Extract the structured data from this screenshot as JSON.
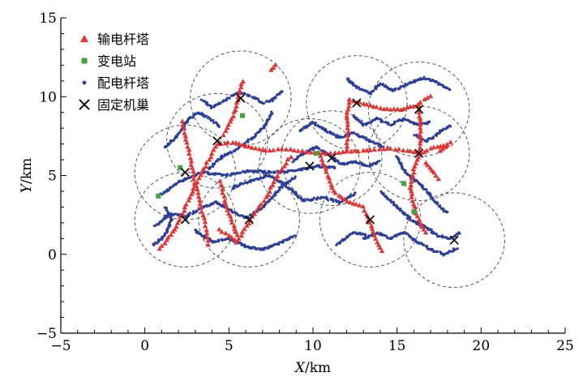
{
  "chart_data": {
    "type": "scatter",
    "xlabel_var": "X",
    "xlabel_unit": "/km",
    "ylabel_var": "Y",
    "ylabel_unit": "/km",
    "xlim": [
      -5,
      25
    ],
    "ylim": [
      -5,
      15
    ],
    "xticks": [
      -5,
      0,
      5,
      10,
      15,
      20,
      25
    ],
    "yticks": [
      -5,
      0,
      5,
      10,
      15
    ],
    "x_minor_step": 1,
    "y_minor_step": 1,
    "grid": false,
    "legend_position": "top-left",
    "legend": [
      {
        "label": "输电杆塔",
        "marker": "triangle",
        "color": "#e8322f"
      },
      {
        "label": "变电站",
        "marker": "square",
        "color": "#3ea63a"
      },
      {
        "label": "配电杆塔",
        "marker": "dot",
        "color": "#2b3f9e"
      },
      {
        "label": "固定机巢",
        "marker": "cross",
        "color": "#111111"
      }
    ],
    "coverage_radius": 3,
    "circle_color": "#555555",
    "nests": [
      [
        5.7,
        9.9
      ],
      [
        4.3,
        7.2
      ],
      [
        2.4,
        5.2
      ],
      [
        2.4,
        2.2
      ],
      [
        6.2,
        2.2
      ],
      [
        9.8,
        5.6
      ],
      [
        11.1,
        6.1
      ],
      [
        12.6,
        9.6
      ],
      [
        16.3,
        9.2
      ],
      [
        16.3,
        6.4
      ],
      [
        13.4,
        2.2
      ],
      [
        18.4,
        0.9
      ]
    ],
    "substations": [
      [
        0.8,
        3.7
      ],
      [
        2.1,
        5.5
      ],
      [
        5.8,
        8.8
      ],
      [
        15.4,
        4.5
      ],
      [
        16.0,
        2.7
      ],
      [
        10.2,
        6.4
      ]
    ],
    "transmission_lines": [
      [
        [
          0.9,
          0.4
        ],
        [
          1.8,
          1.6
        ],
        [
          2.4,
          3.0
        ],
        [
          3.0,
          4.4
        ],
        [
          3.6,
          5.6
        ],
        [
          4.3,
          7.0
        ],
        [
          5.2,
          7.1
        ],
        [
          6.2,
          6.8
        ],
        [
          7.2,
          6.6
        ],
        [
          8.4,
          6.7
        ],
        [
          9.6,
          6.5
        ],
        [
          10.8,
          6.4
        ],
        [
          12.0,
          6.5
        ],
        [
          13.2,
          6.6
        ],
        [
          14.4,
          6.7
        ],
        [
          15.6,
          6.6
        ],
        [
          16.4,
          6.4
        ],
        [
          17.2,
          6.8
        ],
        [
          18.2,
          7.0
        ]
      ],
      [
        [
          2.2,
          8.4
        ],
        [
          2.6,
          6.6
        ],
        [
          2.9,
          5.0
        ],
        [
          3.3,
          3.2
        ],
        [
          3.6,
          1.8
        ],
        [
          3.8,
          0.4
        ]
      ],
      [
        [
          4.5,
          4.6
        ],
        [
          4.8,
          3.2
        ],
        [
          5.2,
          2.0
        ],
        [
          5.6,
          1.0
        ],
        [
          6.4,
          2.4
        ],
        [
          7.2,
          3.6
        ],
        [
          8.0,
          5.2
        ],
        [
          8.8,
          6.4
        ]
      ],
      [
        [
          4.4,
          1.6
        ],
        [
          5.0,
          1.2
        ],
        [
          5.6,
          0.6
        ]
      ],
      [
        [
          5.8,
          11.0
        ],
        [
          5.6,
          10.2
        ],
        [
          5.4,
          9.2
        ],
        [
          5.0,
          8.2
        ],
        [
          4.6,
          7.4
        ]
      ],
      [
        [
          7.8,
          12.0
        ],
        [
          7.4,
          11.6
        ]
      ],
      [
        [
          10.4,
          6.4
        ],
        [
          10.8,
          5.2
        ],
        [
          11.2,
          4.0
        ],
        [
          12.0,
          3.4
        ],
        [
          13.0,
          3.0
        ],
        [
          13.4,
          2.0
        ],
        [
          13.8,
          0.8
        ],
        [
          14.2,
          0.0
        ]
      ],
      [
        [
          12.0,
          6.6
        ],
        [
          12.1,
          7.8
        ],
        [
          12.0,
          8.8
        ],
        [
          12.2,
          9.8
        ],
        [
          12.8,
          9.6
        ],
        [
          13.6,
          9.4
        ],
        [
          14.4,
          9.2
        ],
        [
          15.2,
          9.2
        ],
        [
          16.0,
          9.4
        ],
        [
          16.6,
          9.8
        ],
        [
          17.2,
          10.2
        ]
      ],
      [
        [
          16.3,
          9.4
        ],
        [
          16.4,
          8.4
        ],
        [
          16.4,
          7.4
        ],
        [
          16.3,
          6.4
        ],
        [
          16.0,
          5.4
        ],
        [
          15.8,
          4.4
        ],
        [
          15.9,
          3.4
        ],
        [
          16.2,
          2.4
        ],
        [
          16.8,
          1.2
        ]
      ],
      [
        [
          17.6,
          6.6
        ],
        [
          18.0,
          7.0
        ],
        [
          18.4,
          7.2
        ]
      ],
      [
        [
          16.7,
          5.8
        ],
        [
          17.2,
          5.2
        ],
        [
          17.6,
          4.6
        ]
      ]
    ],
    "distribution_lines": [
      [
        [
          1.0,
          3.8
        ],
        [
          2.0,
          4.6
        ],
        [
          3.4,
          5.2
        ],
        [
          4.8,
          5.0
        ],
        [
          6.2,
          5.3
        ],
        [
          7.6,
          5.2
        ],
        [
          9.0,
          5.3
        ],
        [
          10.2,
          5.6
        ],
        [
          11.4,
          5.5
        ]
      ],
      [
        [
          0.6,
          1.8
        ],
        [
          1.5,
          2.6
        ],
        [
          2.4,
          2.4
        ],
        [
          3.3,
          2.9
        ],
        [
          4.2,
          3.3
        ],
        [
          5.1,
          2.8
        ],
        [
          6.0,
          2.3
        ],
        [
          6.9,
          2.9
        ],
        [
          7.6,
          3.6
        ],
        [
          8.2,
          4.4
        ],
        [
          9.0,
          4.9
        ]
      ],
      [
        [
          1.2,
          6.8
        ],
        [
          2.0,
          7.6
        ],
        [
          2.6,
          8.6
        ],
        [
          3.2,
          9.0
        ],
        [
          3.9,
          8.6
        ],
        [
          4.5,
          8.1
        ]
      ],
      [
        [
          3.4,
          9.8
        ],
        [
          4.0,
          9.3
        ],
        [
          4.8,
          9.8
        ],
        [
          5.6,
          10.3
        ],
        [
          6.4,
          10.0
        ],
        [
          7.0,
          9.6
        ],
        [
          7.6,
          9.8
        ],
        [
          8.2,
          10.4
        ]
      ],
      [
        [
          3.8,
          5.4
        ],
        [
          4.6,
          6.2
        ],
        [
          5.4,
          6.6
        ],
        [
          6.4,
          7.4
        ],
        [
          7.2,
          8.2
        ],
        [
          7.6,
          9.1
        ]
      ],
      [
        [
          5.2,
          4.2
        ],
        [
          6.4,
          4.7
        ],
        [
          7.4,
          5.0
        ],
        [
          8.6,
          4.2
        ],
        [
          9.4,
          3.4
        ],
        [
          10.6,
          3.6
        ],
        [
          11.6,
          3.3
        ],
        [
          12.6,
          3.9
        ]
      ],
      [
        [
          3.0,
          1.5
        ],
        [
          4.0,
          0.8
        ],
        [
          5.0,
          1.0
        ],
        [
          6.0,
          0.5
        ],
        [
          7.0,
          0.3
        ],
        [
          8.0,
          0.7
        ],
        [
          9.0,
          1.2
        ]
      ],
      [
        [
          9.2,
          7.8
        ],
        [
          10.0,
          8.4
        ],
        [
          10.8,
          7.8
        ],
        [
          11.6,
          7.4
        ],
        [
          12.4,
          7.7
        ],
        [
          13.4,
          7.2
        ],
        [
          14.2,
          6.8
        ]
      ],
      [
        [
          8.8,
          5.9
        ],
        [
          9.4,
          6.4
        ],
        [
          10.2,
          6.8
        ],
        [
          11.0,
          6.3
        ],
        [
          11.7,
          5.7
        ],
        [
          12.5,
          5.9
        ],
        [
          13.3,
          5.6
        ],
        [
          14.0,
          5.9
        ]
      ],
      [
        [
          12.0,
          11.2
        ],
        [
          12.6,
          10.6
        ],
        [
          13.4,
          10.2
        ],
        [
          14.0,
          10.8
        ],
        [
          14.8,
          10.4
        ],
        [
          15.6,
          10.8
        ],
        [
          16.6,
          11.2
        ],
        [
          17.4,
          10.9
        ],
        [
          18.2,
          10.4
        ]
      ],
      [
        [
          12.4,
          8.8
        ],
        [
          13.0,
          8.2
        ],
        [
          13.8,
          8.6
        ],
        [
          14.6,
          8.2
        ],
        [
          15.4,
          8.6
        ],
        [
          16.2,
          8.2
        ],
        [
          17.0,
          8.4
        ]
      ],
      [
        [
          15.0,
          6.2
        ],
        [
          15.5,
          5.2
        ],
        [
          16.2,
          4.6
        ],
        [
          16.8,
          4.0
        ],
        [
          17.4,
          3.2
        ],
        [
          18.0,
          2.6
        ]
      ],
      [
        [
          14.0,
          4.0
        ],
        [
          14.6,
          3.4
        ],
        [
          15.2,
          2.8
        ],
        [
          15.8,
          2.2
        ],
        [
          16.6,
          1.8
        ],
        [
          17.4,
          1.2
        ],
        [
          18.2,
          1.0
        ],
        [
          18.8,
          1.4
        ]
      ],
      [
        [
          13.0,
          1.0
        ],
        [
          13.8,
          1.4
        ],
        [
          14.6,
          1.0
        ],
        [
          15.4,
          1.4
        ],
        [
          16.2,
          0.8
        ],
        [
          17.0,
          0.3
        ],
        [
          17.8,
          0.0
        ],
        [
          18.6,
          0.4
        ]
      ],
      [
        [
          11.4,
          0.6
        ],
        [
          12.4,
          1.4
        ],
        [
          13.2,
          1.2
        ]
      ],
      [
        [
          16.0,
          7.6
        ],
        [
          16.8,
          7.2
        ],
        [
          17.6,
          7.8
        ],
        [
          18.2,
          8.2
        ]
      ],
      [
        [
          0.5,
          0.6
        ],
        [
          1.2,
          1.2
        ],
        [
          1.6,
          2.2
        ],
        [
          1.2,
          3.0
        ]
      ]
    ]
  }
}
